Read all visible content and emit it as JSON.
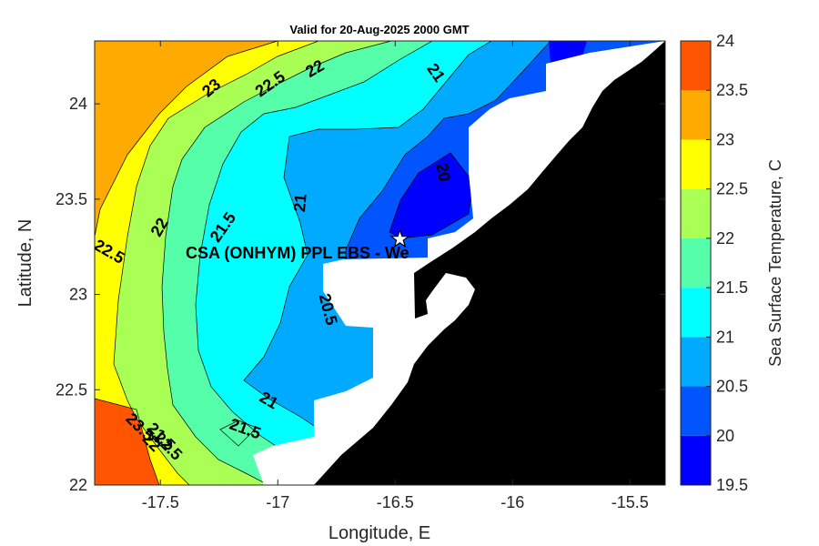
{
  "figure": {
    "title": "Valid for 20-Aug-2025 2000 GMT",
    "xlabel": "Longitude, E",
    "ylabel": "Latitude, N",
    "colorbar_label": "Sea Surface Temperature, C",
    "site_label": "CSA (ONHYM) PPL EBS  - We",
    "site_marker": "star"
  },
  "x_ticks": [
    {
      "value": -17.5,
      "label": "-17.5"
    },
    {
      "value": -17,
      "label": "-17"
    },
    {
      "value": -16.5,
      "label": "-16.5"
    },
    {
      "value": -16,
      "label": "-16"
    },
    {
      "value": -15.5,
      "label": "-15.5"
    }
  ],
  "y_ticks": [
    {
      "value": 22,
      "label": "22"
    },
    {
      "value": 22.5,
      "label": "22.5"
    },
    {
      "value": 23,
      "label": "23"
    },
    {
      "value": 23.5,
      "label": "23.5"
    },
    {
      "value": 24,
      "label": "24"
    }
  ],
  "colorbar": [
    {
      "value": 19.5,
      "label": "19.5",
      "color": "#0000ff"
    },
    {
      "value": 20,
      "label": "20",
      "color": "#0055ff"
    },
    {
      "value": 20.5,
      "label": "20.5",
      "color": "#00aaff"
    },
    {
      "value": 21,
      "label": "21",
      "color": "#00ffff"
    },
    {
      "value": 21.5,
      "label": "21.5",
      "color": "#55ffaa"
    },
    {
      "value": 22,
      "label": "22",
      "color": "#aaff55"
    },
    {
      "value": 22.5,
      "label": "22.5",
      "color": "#ffff00"
    },
    {
      "value": 23,
      "label": "23",
      "color": "#ffaa00"
    },
    {
      "value": 23.5,
      "label": "23.5",
      "color": "#ff5500"
    },
    {
      "value": 24,
      "label": "24",
      "color": ""
    }
  ],
  "colors": {
    "land": "#000000",
    "no_data": "#ffffff",
    "contour_line": "#000000"
  },
  "contour_labels": [
    {
      "text": "23",
      "lon": -17.28,
      "lat": 24.08
    },
    {
      "text": "22.5",
      "lon": -17.03,
      "lat": 24.1
    },
    {
      "text": "22",
      "lon": -16.84,
      "lat": 24.18
    },
    {
      "text": "21",
      "lon": -16.33,
      "lat": 24.16
    },
    {
      "text": "20",
      "lon": -16.3,
      "lat": 23.64
    },
    {
      "text": "21",
      "lon": -16.9,
      "lat": 23.48
    },
    {
      "text": "21.5",
      "lon": -17.23,
      "lat": 23.35
    },
    {
      "text": "22",
      "lon": -17.5,
      "lat": 23.35
    },
    {
      "text": "22.5",
      "lon": -17.72,
      "lat": 23.22
    },
    {
      "text": "20.5",
      "lon": -16.79,
      "lat": 22.92
    },
    {
      "text": "21",
      "lon": -17.04,
      "lat": 22.44
    },
    {
      "text": "21.5",
      "lon": -17.14,
      "lat": 22.29
    },
    {
      "text": "23.5",
      "lon": -17.59,
      "lat": 22.3
    },
    {
      "text": "21.5",
      "lon": -17.5,
      "lat": 22.25
    },
    {
      "text": "22",
      "lon": -17.54,
      "lat": 22.22
    },
    {
      "text": "22.5",
      "lon": -17.47,
      "lat": 22.2
    }
  ],
  "site": {
    "lon": -16.48,
    "lat": 23.29
  },
  "chart_data": {
    "type": "heatmap",
    "title": "Valid for 20-Aug-2025 2000 GMT",
    "xlabel": "Longitude, E",
    "ylabel": "Latitude, N",
    "xlim": [
      -17.78,
      -15.35
    ],
    "ylim": [
      22.0,
      24.33
    ],
    "colorbar_label": "Sea Surface Temperature, C",
    "clim": [
      19.5,
      24.0
    ],
    "contour_levels": [
      20,
      20.5,
      21,
      21.5,
      22,
      22.5,
      23,
      23.5
    ],
    "grid": false
  }
}
